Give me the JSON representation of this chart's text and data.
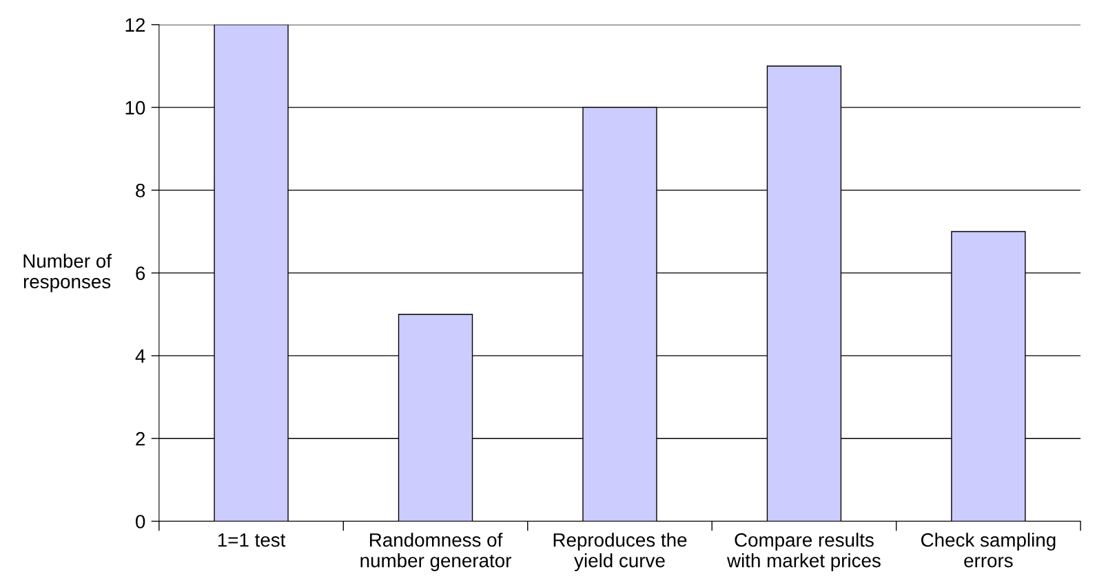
{
  "chart_data": {
    "type": "bar",
    "categories": [
      "1=1 test",
      "Randomness of\nnumber generator",
      "Reproduces the\nyield curve",
      "Compare results\nwith market prices",
      "Check sampling\nerrors"
    ],
    "values": [
      12,
      5,
      10,
      11,
      7
    ],
    "color": "#ccccff",
    "ylabel": "Number of\nresponses",
    "ylim": [
      0,
      12
    ],
    "yticks": [
      0,
      2,
      4,
      6,
      8,
      10,
      12
    ],
    "grid": "y"
  }
}
